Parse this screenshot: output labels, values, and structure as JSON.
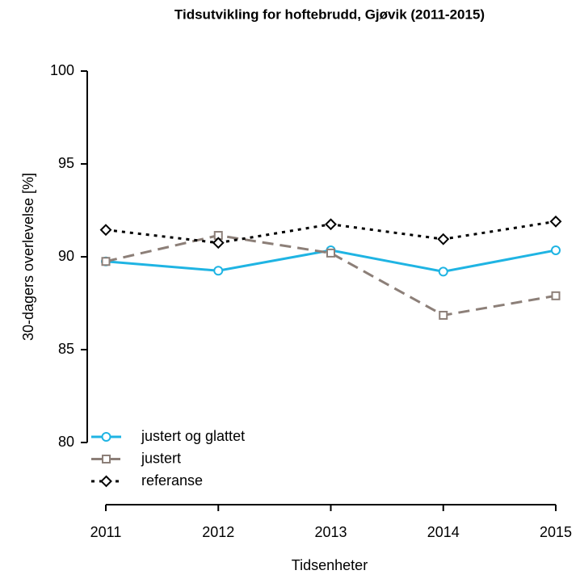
{
  "chart_data": {
    "type": "line",
    "title": "Tidsutvikling for hoftebrudd, Gjøvik (2011-2015)",
    "x_label": "Tidsenheter",
    "y_label": "30-dagers overlevelse [%]",
    "x": [
      2011,
      2012,
      2013,
      2014,
      2015
    ],
    "xlim": [
      2011,
      2015
    ],
    "xticks": [
      2011,
      2012,
      2013,
      2014,
      2015
    ],
    "ylim": [
      80,
      100
    ],
    "yticks": [
      80,
      85,
      90,
      95,
      100
    ],
    "legend_position": "bottom-left",
    "series": [
      {
        "name": "justert og glattet",
        "color": "#1fb4e3",
        "marker": "circle",
        "dash": "solid",
        "values": [
          89.75,
          89.25,
          90.35,
          89.2,
          90.35
        ]
      },
      {
        "name": "justert",
        "color": "#8c7f78",
        "marker": "square",
        "dash": "dashed",
        "values": [
          89.75,
          91.15,
          90.2,
          86.85,
          87.9
        ]
      },
      {
        "name": "referanse",
        "color": "#000000",
        "marker": "diamond",
        "dash": "dotted",
        "values": [
          91.45,
          90.75,
          91.75,
          90.95,
          91.9
        ]
      }
    ]
  }
}
